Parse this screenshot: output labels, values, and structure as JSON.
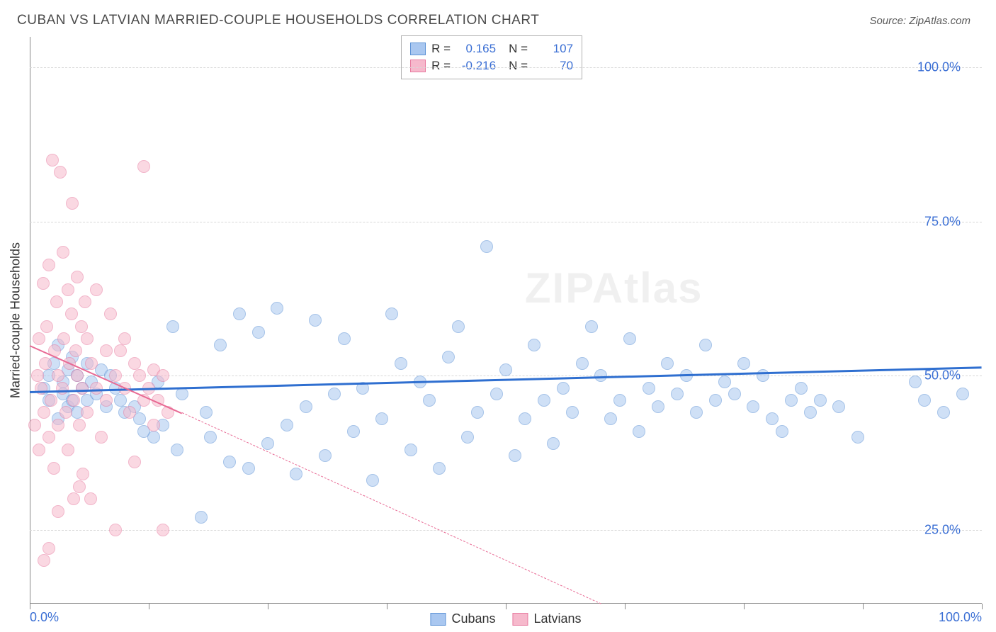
{
  "title": "CUBAN VS LATVIAN MARRIED-COUPLE HOUSEHOLDS CORRELATION CHART",
  "source": "Source: ZipAtlas.com",
  "watermark": "ZIPAtlas",
  "y_axis_title": "Married-couple Households",
  "chart": {
    "type": "scatter",
    "xlim": [
      0,
      100
    ],
    "ylim": [
      13,
      105
    ],
    "y_gridlines": [
      25,
      50,
      75,
      100
    ],
    "y_tick_labels": [
      "25.0%",
      "50.0%",
      "75.0%",
      "100.0%"
    ],
    "x_ticks": [
      0,
      12.5,
      25,
      37.5,
      50,
      62.5,
      75,
      87.5,
      100
    ],
    "x_tick_labels": {
      "0": "0.0%",
      "100": "100.0%"
    },
    "background_color": "#ffffff",
    "grid_color": "#d8d8d8",
    "marker_radius": 9,
    "marker_opacity": 0.55,
    "axis_label_color": "#3b6fd4",
    "series": [
      {
        "name": "Cubans",
        "fill": "#a9c7f0",
        "stroke": "#5e93d6",
        "trend_color": "#2f6fd0",
        "trend_width": 3,
        "R": "0.165",
        "N": "107",
        "trend": {
          "x1": 0,
          "y1": 47.5,
          "x2": 100,
          "y2": 51.5,
          "dash": false
        },
        "points": [
          [
            1.5,
            48
          ],
          [
            2,
            50
          ],
          [
            2,
            46
          ],
          [
            2.5,
            52
          ],
          [
            3,
            43
          ],
          [
            3,
            55
          ],
          [
            3.5,
            47
          ],
          [
            3.5,
            49
          ],
          [
            4,
            45
          ],
          [
            4,
            51
          ],
          [
            4.5,
            53
          ],
          [
            4.5,
            46
          ],
          [
            5,
            50
          ],
          [
            5,
            44
          ],
          [
            5.5,
            48
          ],
          [
            6,
            52
          ],
          [
            6,
            46
          ],
          [
            6.5,
            49
          ],
          [
            7,
            47
          ],
          [
            7.5,
            51
          ],
          [
            8,
            45
          ],
          [
            8.5,
            50
          ],
          [
            9,
            48
          ],
          [
            9.5,
            46
          ],
          [
            10,
            44
          ],
          [
            11,
            45
          ],
          [
            11.5,
            43
          ],
          [
            12,
            41
          ],
          [
            13,
            40
          ],
          [
            13.5,
            49
          ],
          [
            14,
            42
          ],
          [
            15,
            58
          ],
          [
            15.5,
            38
          ],
          [
            16,
            47
          ],
          [
            18,
            27
          ],
          [
            18.5,
            44
          ],
          [
            19,
            40
          ],
          [
            20,
            55
          ],
          [
            21,
            36
          ],
          [
            22,
            60
          ],
          [
            23,
            35
          ],
          [
            24,
            57
          ],
          [
            25,
            39
          ],
          [
            26,
            61
          ],
          [
            27,
            42
          ],
          [
            28,
            34
          ],
          [
            29,
            45
          ],
          [
            30,
            59
          ],
          [
            31,
            37
          ],
          [
            32,
            47
          ],
          [
            33,
            56
          ],
          [
            34,
            41
          ],
          [
            35,
            48
          ],
          [
            36,
            33
          ],
          [
            37,
            43
          ],
          [
            38,
            60
          ],
          [
            39,
            52
          ],
          [
            40,
            38
          ],
          [
            41,
            49
          ],
          [
            42,
            46
          ],
          [
            43,
            35
          ],
          [
            44,
            53
          ],
          [
            45,
            58
          ],
          [
            46,
            40
          ],
          [
            47,
            44
          ],
          [
            48,
            71
          ],
          [
            49,
            47
          ],
          [
            50,
            51
          ],
          [
            51,
            37
          ],
          [
            52,
            43
          ],
          [
            53,
            55
          ],
          [
            54,
            46
          ],
          [
            55,
            39
          ],
          [
            56,
            48
          ],
          [
            57,
            44
          ],
          [
            58,
            52
          ],
          [
            59,
            58
          ],
          [
            60,
            50
          ],
          [
            61,
            43
          ],
          [
            62,
            46
          ],
          [
            63,
            56
          ],
          [
            64,
            41
          ],
          [
            65,
            48
          ],
          [
            66,
            45
          ],
          [
            67,
            52
          ],
          [
            68,
            47
          ],
          [
            69,
            50
          ],
          [
            70,
            44
          ],
          [
            71,
            55
          ],
          [
            72,
            46
          ],
          [
            73,
            49
          ],
          [
            74,
            47
          ],
          [
            75,
            52
          ],
          [
            76,
            45
          ],
          [
            77,
            50
          ],
          [
            78,
            43
          ],
          [
            79,
            41
          ],
          [
            80,
            46
          ],
          [
            81,
            48
          ],
          [
            82,
            44
          ],
          [
            83,
            46
          ],
          [
            85,
            45
          ],
          [
            87,
            40
          ],
          [
            93,
            49
          ],
          [
            94,
            46
          ],
          [
            96,
            44
          ],
          [
            98,
            47
          ]
        ]
      },
      {
        "name": "Latvians",
        "fill": "#f6b9cc",
        "stroke": "#e87ba0",
        "trend_color": "#e86a94",
        "trend_width": 2.5,
        "R": "-0.216",
        "N": "70",
        "trend": {
          "x1": 0,
          "y1": 55,
          "x2": 16,
          "y2": 44,
          "dash": false
        },
        "trend_ext": {
          "x1": 16,
          "y1": 44,
          "x2": 60,
          "y2": 13,
          "dash": true
        },
        "points": [
          [
            0.5,
            42
          ],
          [
            0.8,
            50
          ],
          [
            1,
            38
          ],
          [
            1,
            56
          ],
          [
            1.2,
            48
          ],
          [
            1.4,
            65
          ],
          [
            1.5,
            44
          ],
          [
            1.6,
            52
          ],
          [
            1.8,
            58
          ],
          [
            2,
            40
          ],
          [
            2,
            68
          ],
          [
            2.2,
            46
          ],
          [
            2.4,
            85
          ],
          [
            2.5,
            35
          ],
          [
            2.6,
            54
          ],
          [
            2.8,
            62
          ],
          [
            3,
            50
          ],
          [
            3,
            42
          ],
          [
            3.2,
            83
          ],
          [
            3.4,
            48
          ],
          [
            3.5,
            70
          ],
          [
            3.6,
            56
          ],
          [
            3.8,
            44
          ],
          [
            4,
            64
          ],
          [
            4,
            38
          ],
          [
            4.2,
            52
          ],
          [
            4.4,
            60
          ],
          [
            4.5,
            78
          ],
          [
            4.6,
            46
          ],
          [
            4.8,
            54
          ],
          [
            5,
            50
          ],
          [
            5,
            66
          ],
          [
            5.2,
            42
          ],
          [
            5.4,
            58
          ],
          [
            5.5,
            48
          ],
          [
            5.6,
            34
          ],
          [
            5.8,
            62
          ],
          [
            6,
            44
          ],
          [
            6,
            56
          ],
          [
            6.5,
            52
          ],
          [
            7,
            48
          ],
          [
            7,
            64
          ],
          [
            7.5,
            40
          ],
          [
            8,
            54
          ],
          [
            8,
            46
          ],
          [
            8.5,
            60
          ],
          [
            9,
            50
          ],
          [
            9,
            25
          ],
          [
            9.5,
            54
          ],
          [
            10,
            48
          ],
          [
            10,
            56
          ],
          [
            10.5,
            44
          ],
          [
            11,
            52
          ],
          [
            11,
            36
          ],
          [
            11.5,
            50
          ],
          [
            12,
            46
          ],
          [
            12,
            84
          ],
          [
            12.5,
            48
          ],
          [
            13,
            42
          ],
          [
            13,
            51
          ],
          [
            13.5,
            46
          ],
          [
            14,
            50
          ],
          [
            14,
            25
          ],
          [
            14.5,
            44
          ],
          [
            1.5,
            20
          ],
          [
            2,
            22
          ],
          [
            3,
            28
          ],
          [
            4.6,
            30
          ],
          [
            5.2,
            32
          ],
          [
            6.4,
            30
          ]
        ]
      }
    ]
  },
  "stats_box": {
    "rows": [
      {
        "swatch_fill": "#a9c7f0",
        "swatch_stroke": "#5e93d6",
        "r_label": "R =",
        "r_val": "0.165",
        "n_label": "N =",
        "n_val": "107"
      },
      {
        "swatch_fill": "#f6b9cc",
        "swatch_stroke": "#e87ba0",
        "r_label": "R =",
        "r_val": "-0.216",
        "n_label": "N =",
        "n_val": "70"
      }
    ]
  },
  "bottom_legend": [
    {
      "fill": "#a9c7f0",
      "stroke": "#5e93d6",
      "label": "Cubans"
    },
    {
      "fill": "#f6b9cc",
      "stroke": "#e87ba0",
      "label": "Latvians"
    }
  ]
}
